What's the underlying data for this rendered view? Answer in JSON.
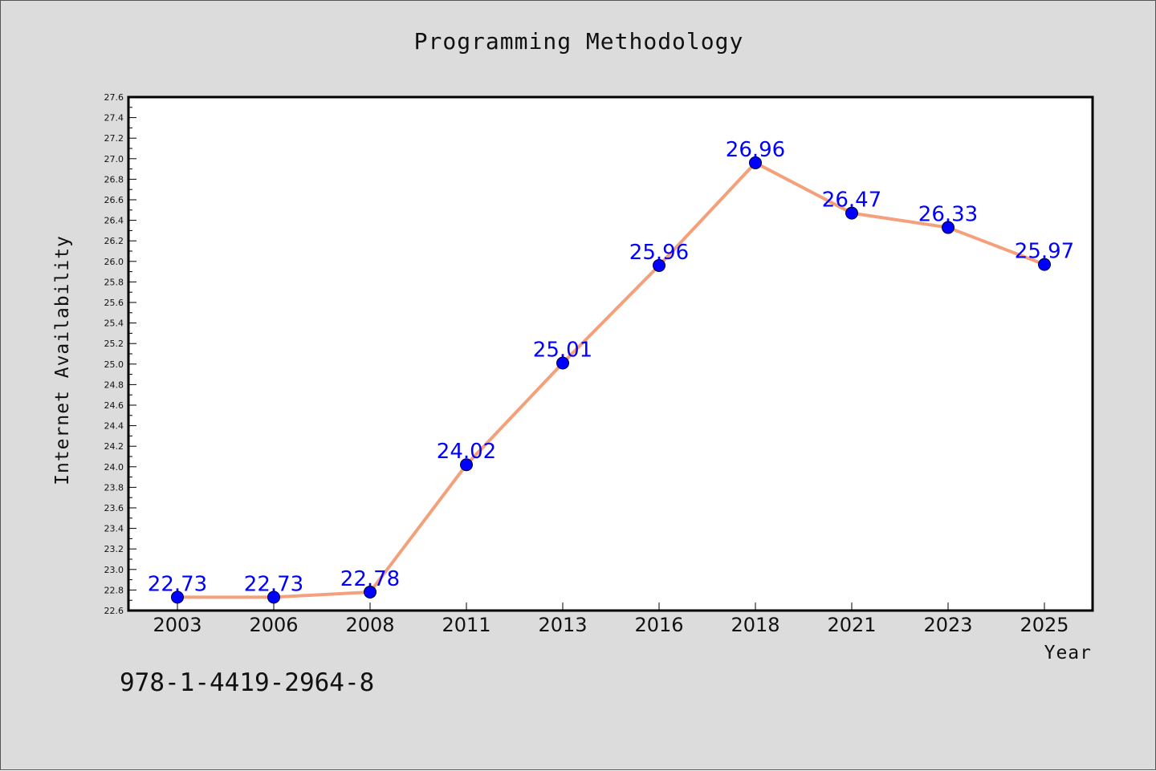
{
  "chart_data": {
    "type": "line",
    "title": "Programming Methodology",
    "xlabel": "Year",
    "ylabel": "Internet Availability",
    "categories": [
      "2003",
      "2006",
      "2008",
      "2011",
      "2013",
      "2016",
      "2018",
      "2021",
      "2023",
      "2025"
    ],
    "series": [
      {
        "values": [
          22.73,
          22.73,
          22.78,
          24.02,
          25.01,
          25.96,
          26.96,
          26.47,
          26.33,
          25.97
        ],
        "line_color": "#f4a07a",
        "marker_color": "#0000ff"
      }
    ],
    "data_labels": [
      "22.73",
      "22.73",
      "22.78",
      "24.02",
      "25.01",
      "25.96",
      "26.96",
      "26.47",
      "26.33",
      "25.97"
    ],
    "ylim": [
      22.6,
      27.6
    ],
    "y_tick_step": 0.2,
    "grid": false,
    "legend": "none"
  },
  "footer": {
    "code": "978-1-4419-2964-8"
  },
  "colors": {
    "background": "#dcdcdc",
    "plot_background": "#ffffff",
    "line": "#f4a07a",
    "marker": "#0000ff",
    "data_label": "#0000ff"
  }
}
